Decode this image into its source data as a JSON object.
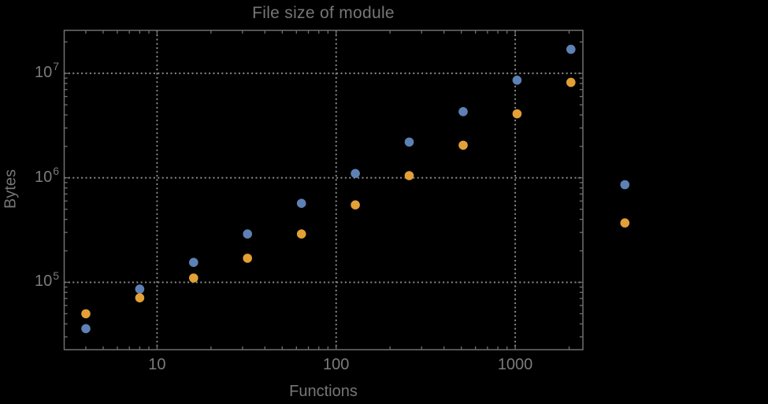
{
  "chart_data": {
    "type": "scatter",
    "title": "File size of module",
    "xlabel": "Functions",
    "ylabel": "Bytes",
    "x_scale": "log",
    "y_scale": "log",
    "grid": "dotted",
    "legend": "none",
    "x": [
      4,
      8,
      16,
      32,
      64,
      128,
      256,
      512,
      1024,
      2048,
      4096
    ],
    "series": [
      {
        "name": "blue",
        "color": "#5E81B5",
        "values": [
          36000,
          86000,
          155000,
          290000,
          570000,
          1100000,
          2200000,
          4300000,
          8600000,
          17000000,
          860000
        ]
      },
      {
        "name": "orange",
        "color": "#E2A037",
        "values": [
          50000,
          71000,
          110000,
          170000,
          290000,
          550000,
          1050000,
          2050000,
          4100000,
          8200000,
          370000
        ]
      }
    ],
    "x_ticks": {
      "major": [
        10,
        100,
        1000
      ],
      "labels": [
        "10",
        "100",
        "1000"
      ]
    },
    "y_ticks": {
      "major": [
        100000,
        1000000,
        10000000
      ],
      "labels": [
        {
          "base": "10",
          "exp": "5"
        },
        {
          "base": "10",
          "exp": "6"
        },
        {
          "base": "10",
          "exp": "7"
        }
      ]
    },
    "x_range_log": [
      0.4813,
      3.378
    ],
    "y_range_log": [
      4.355,
      7.412
    ],
    "colors": {
      "background": "#000000",
      "frame": "#6f6f6f",
      "grid": "#898989",
      "text": "#767676",
      "tick_text": "#7b7b7b"
    }
  }
}
